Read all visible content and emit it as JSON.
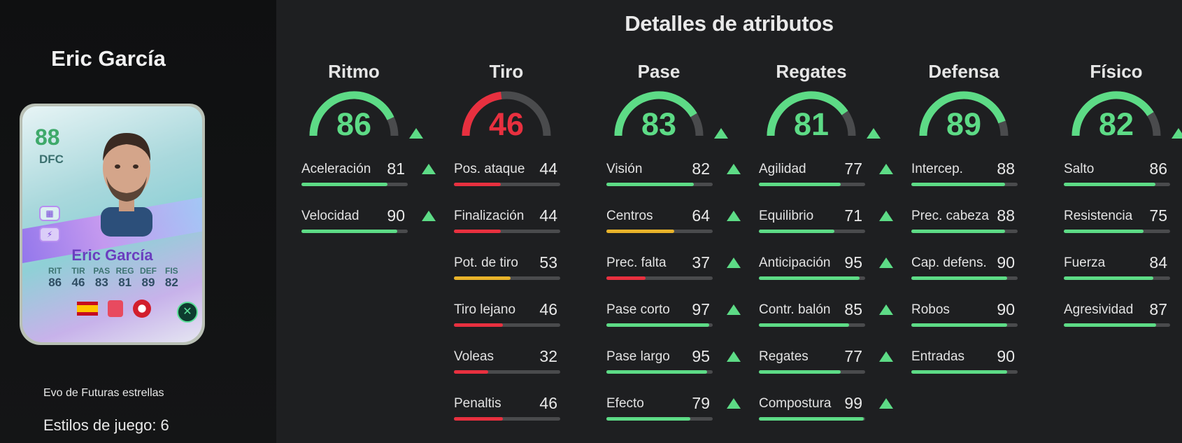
{
  "player": {
    "name": "Eric García",
    "card": {
      "rating": "88",
      "position": "DFC",
      "name": "Eric García",
      "stat_labels": [
        "RIT",
        "TIR",
        "PAS",
        "REG",
        "DEF",
        "FIS"
      ],
      "stat_values": [
        "86",
        "46",
        "83",
        "81",
        "89",
        "82"
      ]
    },
    "evo_title": "Evo de Futuras estrellas",
    "playstyles": "Estilos de juego: 6"
  },
  "panel_title": "Detalles de atributos",
  "colors": {
    "green": "#5ddb86",
    "red": "#e8303f",
    "yellow": "#e8b32a",
    "track": "#4a4b4d"
  },
  "categories": [
    {
      "name": "Ritmo",
      "value": 86,
      "color": "#5ddb86",
      "arrow": true,
      "stats": [
        {
          "label": "Aceleración",
          "value": 81,
          "color": "#5ddb86",
          "arrow": true
        },
        {
          "label": "Velocidad",
          "value": 90,
          "color": "#5ddb86",
          "arrow": true
        }
      ]
    },
    {
      "name": "Tiro",
      "value": 46,
      "color": "#e8303f",
      "arrow": false,
      "stats": [
        {
          "label": "Pos. ataque",
          "value": 44,
          "color": "#e8303f",
          "arrow": false
        },
        {
          "label": "Finalización",
          "value": 44,
          "color": "#e8303f",
          "arrow": false
        },
        {
          "label": "Pot. de tiro",
          "value": 53,
          "color": "#e8b32a",
          "arrow": false
        },
        {
          "label": "Tiro lejano",
          "value": 46,
          "color": "#e8303f",
          "arrow": false
        },
        {
          "label": "Voleas",
          "value": 32,
          "color": "#e8303f",
          "arrow": false
        },
        {
          "label": "Penaltis",
          "value": 46,
          "color": "#e8303f",
          "arrow": false
        }
      ]
    },
    {
      "name": "Pase",
      "value": 83,
      "color": "#5ddb86",
      "arrow": true,
      "stats": [
        {
          "label": "Visión",
          "value": 82,
          "color": "#5ddb86",
          "arrow": true
        },
        {
          "label": "Centros",
          "value": 64,
          "color": "#e8b32a",
          "arrow": true
        },
        {
          "label": "Prec. falta",
          "value": 37,
          "color": "#e8303f",
          "arrow": true
        },
        {
          "label": "Pase corto",
          "value": 97,
          "color": "#5ddb86",
          "arrow": true
        },
        {
          "label": "Pase largo",
          "value": 95,
          "color": "#5ddb86",
          "arrow": true
        },
        {
          "label": "Efecto",
          "value": 79,
          "color": "#5ddb86",
          "arrow": true
        }
      ]
    },
    {
      "name": "Regates",
      "value": 81,
      "color": "#5ddb86",
      "arrow": true,
      "stats": [
        {
          "label": "Agilidad",
          "value": 77,
          "color": "#5ddb86",
          "arrow": true
        },
        {
          "label": "Equilibrio",
          "value": 71,
          "color": "#5ddb86",
          "arrow": true
        },
        {
          "label": "Anticipación",
          "value": 95,
          "color": "#5ddb86",
          "arrow": true
        },
        {
          "label": "Contr. balón",
          "value": 85,
          "color": "#5ddb86",
          "arrow": true
        },
        {
          "label": "Regates",
          "value": 77,
          "color": "#5ddb86",
          "arrow": true
        },
        {
          "label": "Compostura",
          "value": 99,
          "color": "#5ddb86",
          "arrow": true
        }
      ]
    },
    {
      "name": "Defensa",
      "value": 89,
      "color": "#5ddb86",
      "arrow": false,
      "stats": [
        {
          "label": "Intercep.",
          "value": 88,
          "color": "#5ddb86",
          "arrow": false
        },
        {
          "label": "Prec. cabeza",
          "value": 88,
          "color": "#5ddb86",
          "arrow": false
        },
        {
          "label": "Cap. defens.",
          "value": 90,
          "color": "#5ddb86",
          "arrow": false
        },
        {
          "label": "Robos",
          "value": 90,
          "color": "#5ddb86",
          "arrow": false
        },
        {
          "label": "Entradas",
          "value": 90,
          "color": "#5ddb86",
          "arrow": false
        }
      ]
    },
    {
      "name": "Físico",
      "value": 82,
      "color": "#5ddb86",
      "arrow": true,
      "stats": [
        {
          "label": "Salto",
          "value": 86,
          "color": "#5ddb86",
          "arrow": true
        },
        {
          "label": "Resistencia",
          "value": 75,
          "color": "#5ddb86",
          "arrow": true
        },
        {
          "label": "Fuerza",
          "value": 84,
          "color": "#5ddb86",
          "arrow": true
        },
        {
          "label": "Agresividad",
          "value": 87,
          "color": "#5ddb86",
          "arrow": true
        }
      ]
    }
  ]
}
